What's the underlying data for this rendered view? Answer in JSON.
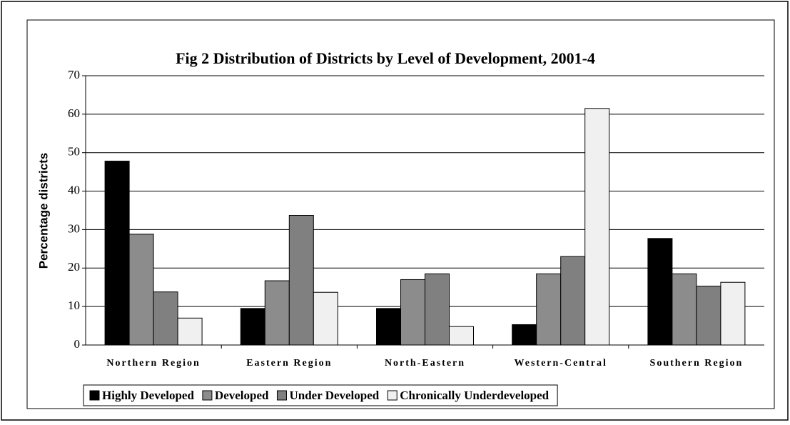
{
  "chart_data": {
    "type": "bar",
    "title": "Fig 2    Distribution of Districts by Level of Development, 2001-4",
    "ylabel": "Percentage districts",
    "categories": [
      "Northern Region",
      "Eastern Region",
      "North-Eastern",
      "Western-Central",
      "Southern Region"
    ],
    "series": [
      {
        "name": "Highly Developed",
        "color": "#000000",
        "values": [
          47.8,
          9.5,
          9.5,
          5.3,
          27.7
        ]
      },
      {
        "name": "Developed",
        "color": "#8c8c8c",
        "values": [
          28.8,
          16.7,
          17,
          18.5,
          18.5
        ]
      },
      {
        "name": "Under Developed",
        "color": "#808080",
        "values": [
          13.8,
          33.7,
          18.5,
          23,
          15.3
        ]
      },
      {
        "name": "Chronically Underdeveloped",
        "color": "#f0f0f0",
        "values": [
          7,
          13.7,
          4.8,
          61.5,
          16.3
        ]
      }
    ],
    "ylim": [
      0,
      70
    ],
    "yticks": [
      0,
      10,
      20,
      30,
      40,
      50,
      60,
      70
    ],
    "grid": true,
    "legend": "bottom"
  }
}
